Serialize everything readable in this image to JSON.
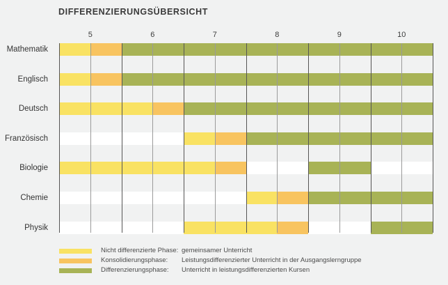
{
  "title": "DIFFERENZIERUNGSÜBERSICHT",
  "grades": [
    "5",
    "6",
    "7",
    "8",
    "9",
    "10"
  ],
  "colors": {
    "nicht_differenziert": "#f9e263",
    "konsolidierung": "#f8c460",
    "differenzierung": "#a8b356"
  },
  "subjects": [
    {
      "name": "Mathematik",
      "segments": [
        {
          "phase": "nicht_differenziert",
          "start": 5.0,
          "end": 5.5
        },
        {
          "phase": "konsolidierung",
          "start": 5.5,
          "end": 6.0
        },
        {
          "phase": "differenzierung",
          "start": 6.0,
          "end": 11.0
        }
      ]
    },
    {
      "name": "Englisch",
      "segments": [
        {
          "phase": "nicht_differenziert",
          "start": 5.0,
          "end": 5.5
        },
        {
          "phase": "konsolidierung",
          "start": 5.5,
          "end": 6.0
        },
        {
          "phase": "differenzierung",
          "start": 6.0,
          "end": 11.0
        }
      ]
    },
    {
      "name": "Deutsch",
      "segments": [
        {
          "phase": "nicht_differenziert",
          "start": 5.0,
          "end": 6.5
        },
        {
          "phase": "konsolidierung",
          "start": 6.5,
          "end": 7.0
        },
        {
          "phase": "differenzierung",
          "start": 7.0,
          "end": 11.0
        }
      ]
    },
    {
      "name": "Französisch",
      "segments": [
        {
          "phase": "nicht_differenziert",
          "start": 7.0,
          "end": 7.5
        },
        {
          "phase": "konsolidierung",
          "start": 7.5,
          "end": 8.0
        },
        {
          "phase": "differenzierung",
          "start": 8.0,
          "end": 11.0
        }
      ]
    },
    {
      "name": "Biologie",
      "segments": [
        {
          "phase": "nicht_differenziert",
          "start": 5.0,
          "end": 7.5
        },
        {
          "phase": "konsolidierung",
          "start": 7.5,
          "end": 8.0
        },
        {
          "phase": "differenzierung",
          "start": 9.0,
          "end": 10.0
        }
      ]
    },
    {
      "name": "Chemie",
      "segments": [
        {
          "phase": "nicht_differenziert",
          "start": 8.0,
          "end": 8.5
        },
        {
          "phase": "konsolidierung",
          "start": 8.5,
          "end": 9.0
        },
        {
          "phase": "differenzierung",
          "start": 9.0,
          "end": 11.0
        }
      ]
    },
    {
      "name": "Physik",
      "segments": [
        {
          "phase": "nicht_differenziert",
          "start": 7.0,
          "end": 8.5
        },
        {
          "phase": "konsolidierung",
          "start": 8.5,
          "end": 9.0
        },
        {
          "phase": "differenzierung",
          "start": 10.0,
          "end": 11.0
        }
      ]
    }
  ],
  "legend": [
    {
      "phase": "nicht_differenziert",
      "name": "Nicht differenzierte Phase:",
      "description": "gemeinsamer Unterricht"
    },
    {
      "phase": "konsolidierung",
      "name": "Konsolidierungsphase:",
      "description": "Leistungsdifferenzierter Unterricht in der Ausgangslerngruppe"
    },
    {
      "phase": "differenzierung",
      "name": "Differenzierungsphase:",
      "description": "Unterricht in leistungsdifferenzierten Kursen"
    }
  ]
}
